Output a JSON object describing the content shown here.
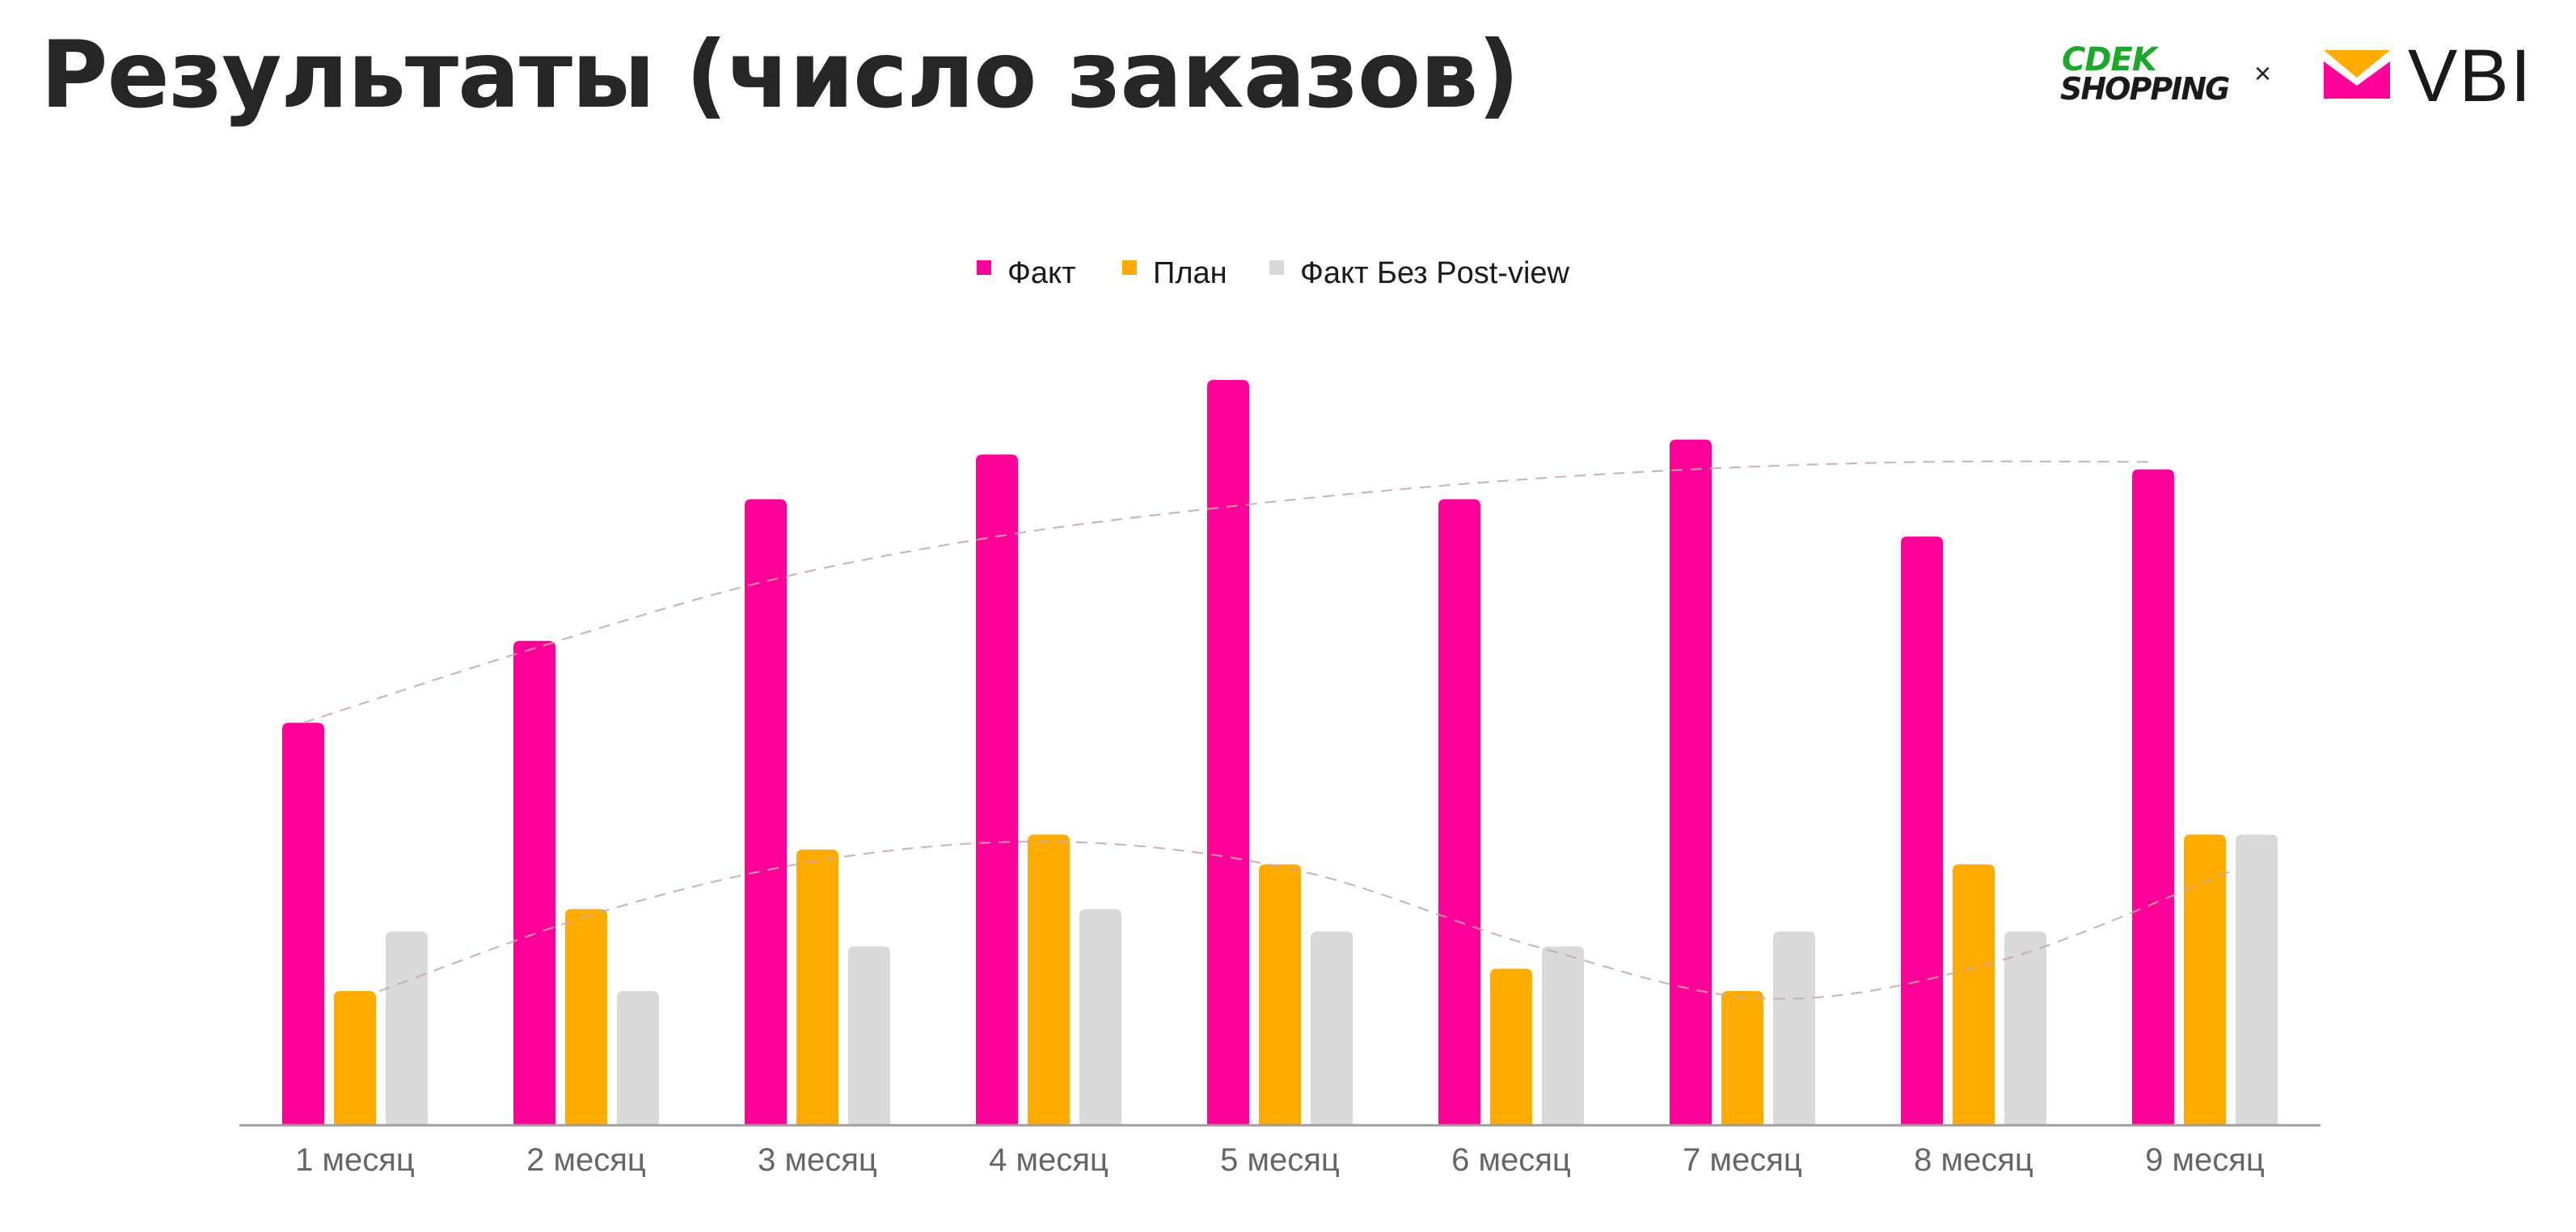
{
  "page": {
    "title": "Результаты (число заказов)"
  },
  "logos": {
    "cdek_top": "CDEK",
    "cdek_bottom": "SHOPPING",
    "separator": "×",
    "vbi": "VBI"
  },
  "colors": {
    "fact": "#ff0099",
    "plan": "#ffab00",
    "fact_no_postview": "#d9d9d9",
    "trend": "#c8a9a6",
    "axis": "#9e9e9e",
    "tick_label": "#666666"
  },
  "chart_data": {
    "type": "bar",
    "title": "",
    "xlabel": "",
    "ylabel": "",
    "ylim": [
      0,
      100
    ],
    "grid": false,
    "legend_position": "top-center",
    "value_axis_shown": false,
    "categories": [
      "1 месяц",
      "2 месяц",
      "3 месяц",
      "4 месяц",
      "5 месяц",
      "6 месяц",
      "7 месяц",
      "8 месяц",
      "9 месяц"
    ],
    "series": [
      {
        "name": "Факт",
        "color": "#ff0099",
        "values": [
          54,
          65,
          84,
          90,
          100,
          84,
          92,
          79,
          88
        ]
      },
      {
        "name": "План",
        "color": "#ffab00",
        "values": [
          18,
          29,
          37,
          39,
          35,
          21,
          18,
          35,
          39
        ]
      },
      {
        "name": "Факт Без Post-view",
        "color": "#d9d9d9",
        "values": [
          26,
          18,
          24,
          29,
          26,
          24,
          26,
          26,
          39
        ]
      }
    ],
    "trendlines": [
      {
        "series": "Факт",
        "style": "dashed",
        "points": [
          54,
          64,
          73,
          79,
          83,
          86,
          88,
          89,
          89
        ]
      },
      {
        "series": "План",
        "style": "dashed",
        "points": [
          18,
          29,
          36,
          38,
          34,
          24,
          17,
          22,
          34
        ]
      }
    ]
  }
}
